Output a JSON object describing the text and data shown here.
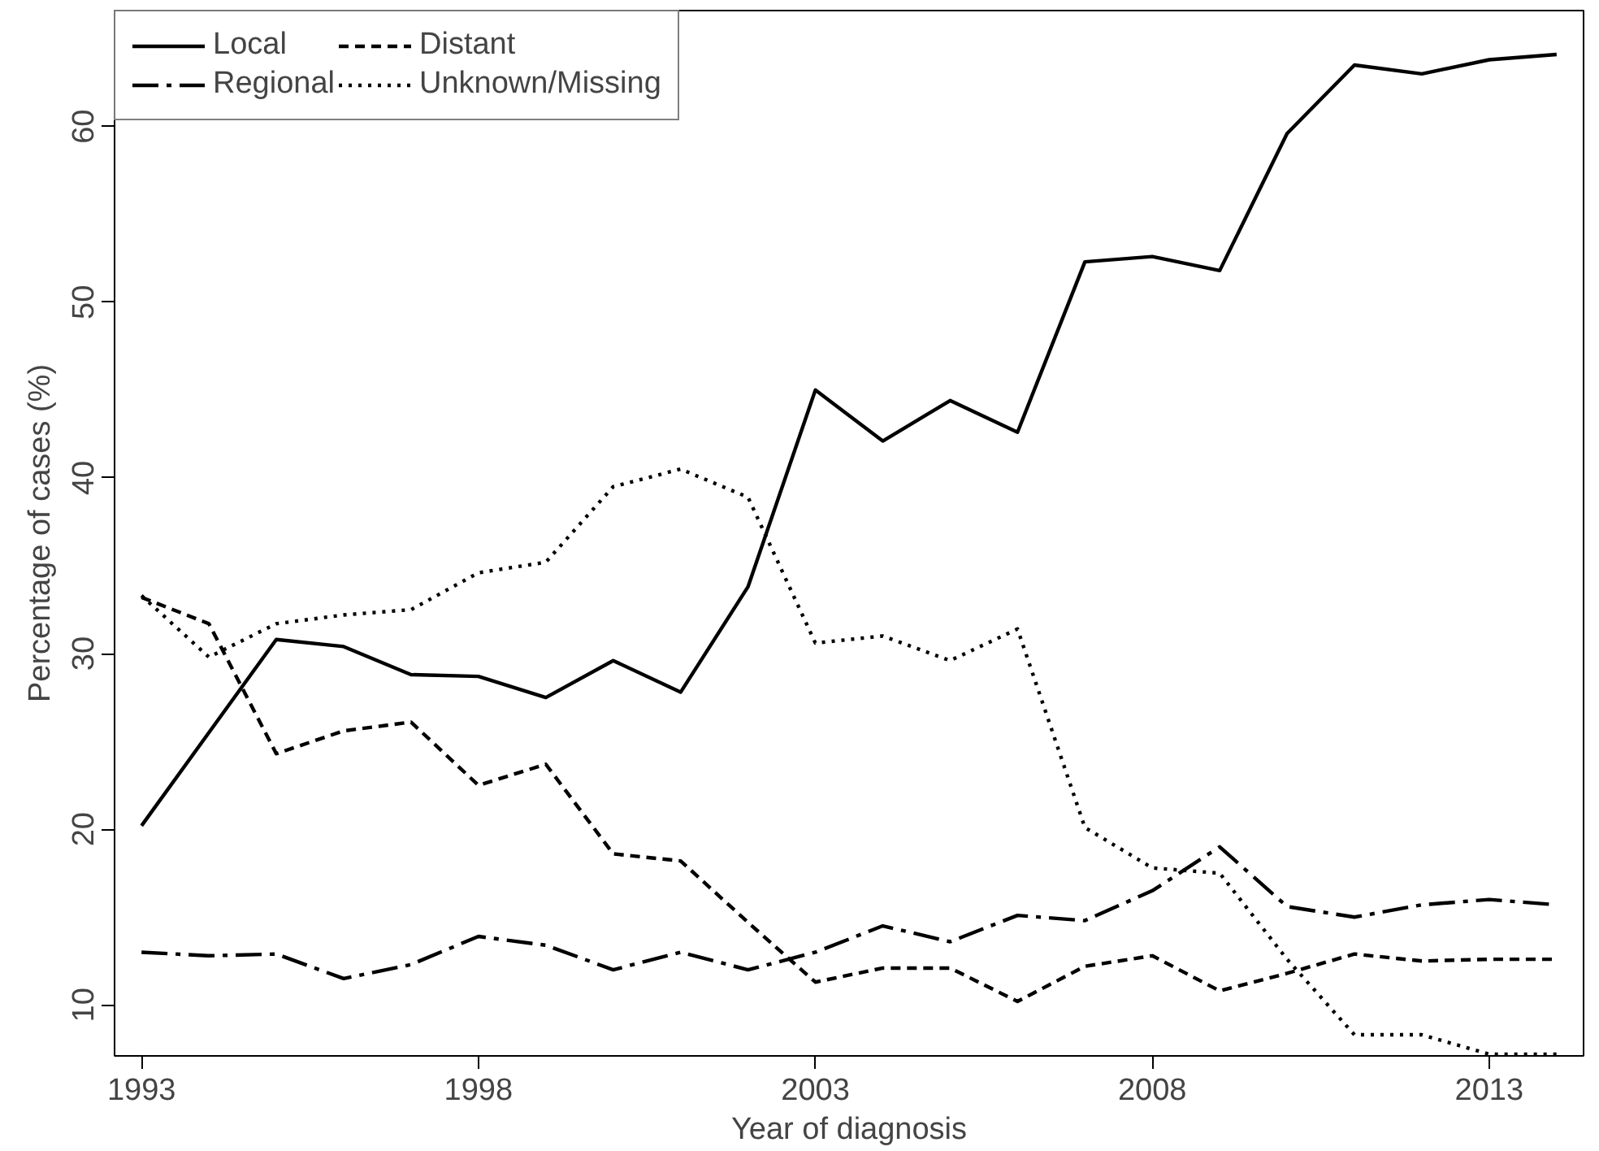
{
  "chart_data": {
    "type": "line",
    "xlabel": "Year of diagnosis",
    "ylabel": "Percentage of cases (%)",
    "x": [
      1993,
      1994,
      1995,
      1996,
      1997,
      1998,
      1999,
      2000,
      2001,
      2002,
      2003,
      2004,
      2005,
      2006,
      2007,
      2008,
      2009,
      2010,
      2011,
      2012,
      2013,
      2014
    ],
    "series": [
      {
        "name": "Local",
        "color": "#000000",
        "line_style": "solid",
        "values": [
          20.2,
          25.5,
          30.8,
          30.4,
          28.8,
          28.7,
          27.5,
          29.6,
          27.8,
          33.8,
          45.0,
          42.1,
          44.4,
          42.6,
          52.3,
          52.6,
          51.8,
          59.6,
          63.5,
          63.0,
          63.8,
          64.1
        ]
      },
      {
        "name": "Regional",
        "color": "#000000",
        "line_style": "dashdot",
        "values": [
          13.0,
          12.8,
          12.9,
          11.5,
          12.3,
          13.9,
          13.4,
          12.0,
          13.0,
          12.0,
          13.0,
          14.5,
          13.6,
          15.1,
          14.8,
          16.5,
          19.0,
          15.6,
          15.0,
          15.7,
          16.0,
          15.7
        ]
      },
      {
        "name": "Distant",
        "color": "#000000",
        "line_style": "dashed",
        "values": [
          33.2,
          31.7,
          24.3,
          25.6,
          26.1,
          22.5,
          23.7,
          18.6,
          18.2,
          14.7,
          11.3,
          12.1,
          12.1,
          10.2,
          12.2,
          12.8,
          10.8,
          11.8,
          12.9,
          12.5,
          12.6,
          12.6
        ]
      },
      {
        "name": "Unknown/Missing",
        "color": "#000000",
        "line_style": "dotted",
        "values": [
          33.3,
          29.8,
          31.7,
          32.2,
          32.5,
          34.6,
          35.2,
          39.5,
          40.5,
          38.9,
          30.6,
          31.0,
          29.6,
          31.4,
          20.1,
          17.8,
          17.5,
          12.6,
          8.3,
          8.3,
          7.2,
          7.2
        ]
      }
    ],
    "xlim": [
      1992.6,
      2014.4
    ],
    "ylim": [
      7.1,
      66.6
    ],
    "xticks": [
      1993,
      1998,
      2003,
      2008,
      2013
    ],
    "yticks": [
      10,
      20,
      30,
      40,
      50,
      60
    ],
    "grid": false,
    "legend": "top left",
    "marker": "none"
  }
}
